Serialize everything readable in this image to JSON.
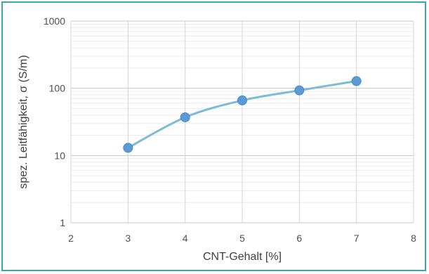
{
  "chart_data": {
    "type": "line",
    "xlabel": "CNT-Gehalt [%]",
    "ylabel": "spez. Leitfähigkeit, σ (S/m)",
    "xlim": [
      2,
      8
    ],
    "ylim": [
      1,
      1000
    ],
    "yscale": "log",
    "x_ticks": [
      "2",
      "3",
      "4",
      "5",
      "6",
      "7",
      "8"
    ],
    "y_ticks": [
      "1",
      "10",
      "100",
      "1000"
    ],
    "grid": true,
    "legend": "none",
    "series": [
      {
        "x": [
          3,
          4,
          5,
          6,
          7
        ],
        "values": [
          13,
          37,
          66,
          93,
          128
        ],
        "line_color": "#7fbad8",
        "marker_color": "#5b9bd5",
        "smoothed": true
      }
    ]
  }
}
